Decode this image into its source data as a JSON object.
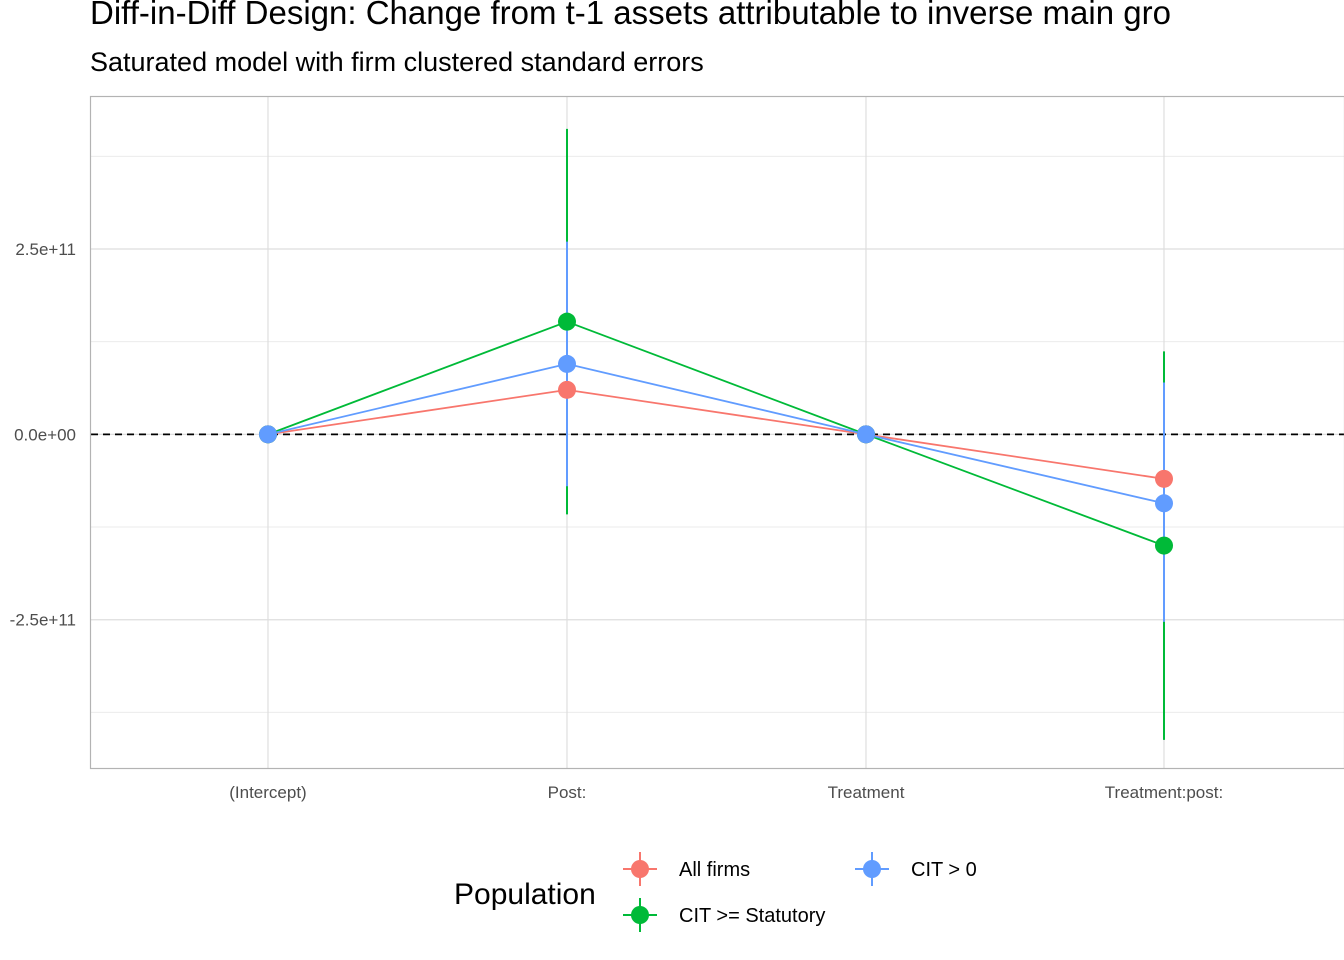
{
  "chart_data": {
    "type": "scatter",
    "title": "Diff-in-Diff Design: Change from t-1 assets attributable to inverse main gro",
    "subtitle": "Saturated model with firm clustered standard errors",
    "xlabel": "",
    "ylabel": "",
    "categories": [
      "(Intercept)",
      "Post:",
      "Treatment",
      "Treatment:post:"
    ],
    "ylim": [
      -450000000000.0,
      455000000000.0
    ],
    "y_ticks": [
      {
        "value": 250000000000.0,
        "label": "2.5e+11"
      },
      {
        "value": 0,
        "label": "0.0e+00"
      },
      {
        "value": -250000000000.0,
        "label": "-2.5e+11"
      }
    ],
    "y_minor_ticks": [
      375000000000.0,
      125000000000.0,
      -125000000000.0,
      -375000000000.0
    ],
    "reference_line": 0,
    "grid": true,
    "legend": {
      "title": "Population",
      "placement": "bottom",
      "entries": [
        "All firms",
        "CIT > 0",
        "CIT >= Statutory"
      ]
    },
    "series": [
      {
        "name": "All firms",
        "color": "#F8766D",
        "values": [
          0,
          60000000000.0,
          0,
          -60000000000.0
        ],
        "lower": [
          0,
          60000000000.0,
          0,
          -60000000000.0
        ],
        "upper": [
          0,
          60000000000.0,
          0,
          -60000000000.0
        ]
      },
      {
        "name": "CIT >= Statutory",
        "color": "#00BA38",
        "values": [
          0,
          152000000000.0,
          0,
          -150000000000.0
        ],
        "lower": [
          0,
          -108000000000.0,
          0,
          -412000000000.0
        ],
        "upper": [
          0,
          412000000000.0,
          0,
          112000000000.0
        ]
      },
      {
        "name": "CIT > 0",
        "color": "#619CFF",
        "values": [
          0,
          95000000000.0,
          0,
          -93000000000.0
        ],
        "lower": [
          0,
          -70000000000.0,
          0,
          -253000000000.0
        ],
        "upper": [
          0,
          260000000000.0,
          0,
          70000000000.0
        ]
      }
    ]
  }
}
